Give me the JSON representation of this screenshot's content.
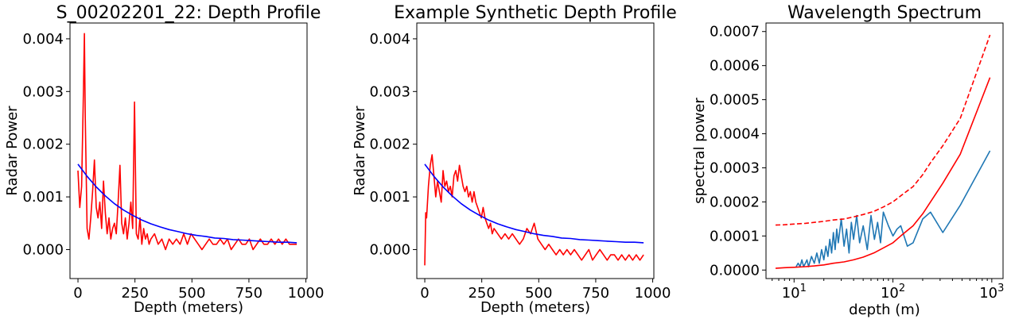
{
  "chart_data": [
    {
      "type": "line",
      "title": "S_00202201_22: Depth Profile",
      "xlabel": "Depth (meters)",
      "ylabel": "Radar Power",
      "xlim": [
        -35,
        1005
      ],
      "ylim": [
        -0.00055,
        0.0043
      ],
      "xticks": [
        0,
        250,
        500,
        750,
        1000
      ],
      "yticks": [
        0.0,
        0.001,
        0.002,
        0.003,
        0.004
      ],
      "xticklabels": [
        "0",
        "250",
        "500",
        "750",
        "1000"
      ],
      "yticklabels": [
        "0.000",
        "0.001",
        "0.002",
        "0.003",
        "0.004"
      ],
      "grid": false,
      "series": [
        {
          "color": "#ff0000",
          "x": [
            0,
            8,
            16,
            24,
            28,
            32,
            40,
            48,
            56,
            64,
            72,
            80,
            88,
            96,
            104,
            112,
            120,
            128,
            136,
            144,
            152,
            160,
            168,
            176,
            184,
            192,
            200,
            208,
            216,
            224,
            232,
            240,
            248,
            256,
            264,
            272,
            280,
            288,
            296,
            304,
            312,
            320,
            336,
            352,
            368,
            384,
            400,
            416,
            432,
            448,
            464,
            480,
            496,
            512,
            528,
            544,
            560,
            576,
            592,
            608,
            624,
            640,
            656,
            672,
            688,
            704,
            720,
            736,
            752,
            768,
            784,
            800,
            816,
            832,
            848,
            864,
            880,
            896,
            912,
            928,
            944,
            960
          ],
          "y": [
            0.0015,
            0.0008,
            0.0012,
            0.003,
            0.0041,
            0.0025,
            0.0004,
            0.0002,
            0.0006,
            0.0011,
            0.0017,
            0.0008,
            0.0006,
            0.0009,
            0.0004,
            0.0013,
            0.0007,
            0.0003,
            0.0006,
            0.0002,
            0.0004,
            0.0005,
            0.0003,
            0.0009,
            0.0016,
            0.0005,
            0.0003,
            0.0006,
            0.0002,
            0.0005,
            0.0009,
            0.0004,
            0.0028,
            0.0003,
            0.0002,
            0.0006,
            0.0001,
            0.0004,
            0.0002,
            0.0003,
            0.0001,
            0.0002,
            0.0003,
            0.0001,
            0.0002,
            0.0,
            0.0002,
            0.0001,
            0.0002,
            0.0001,
            0.0003,
            0.0001,
            0.0003,
            0.0002,
            0.0001,
            0.0,
            0.0001,
            0.0002,
            0.0001,
            0.0001,
            0.0002,
            0.0001,
            0.0002,
            0.0,
            0.0001,
            0.0002,
            0.0001,
            0.0001,
            0.0002,
            0.0,
            0.0001,
            0.0002,
            0.0001,
            0.0001,
            0.0002,
            0.0001,
            0.0002,
            0.0001,
            0.0002,
            0.0001,
            0.0001,
            0.0001
          ]
        },
        {
          "color": "#0000ff",
          "x": [
            0,
            40,
            80,
            120,
            160,
            200,
            240,
            280,
            320,
            360,
            400,
            440,
            480,
            520,
            560,
            600,
            640,
            680,
            720,
            760,
            800,
            840,
            880,
            920,
            960
          ],
          "y": [
            0.00162,
            0.00139,
            0.00119,
            0.00102,
            0.00087,
            0.00075,
            0.00065,
            0.00056,
            0.00049,
            0.00043,
            0.00038,
            0.00034,
            0.0003,
            0.00027,
            0.00025,
            0.00022,
            0.00021,
            0.00019,
            0.00018,
            0.00017,
            0.00016,
            0.00015,
            0.00014,
            0.00014,
            0.00013
          ]
        }
      ]
    },
    {
      "type": "line",
      "title": "Example Synthetic Depth Profile",
      "xlabel": "Depth (meters)",
      "ylabel": "Radar Power",
      "xlim": [
        -35,
        1005
      ],
      "ylim": [
        -0.00055,
        0.0043
      ],
      "xticks": [
        0,
        250,
        500,
        750,
        1000
      ],
      "yticks": [
        0.0,
        0.001,
        0.002,
        0.003,
        0.004
      ],
      "xticklabels": [
        "0",
        "250",
        "500",
        "750",
        "1000"
      ],
      "yticklabels": [
        "0.000",
        "0.001",
        "0.002",
        "0.003",
        "0.004"
      ],
      "grid": false,
      "series": [
        {
          "color": "#ff0000",
          "x": [
            0,
            4,
            8,
            16,
            24,
            32,
            40,
            48,
            56,
            64,
            72,
            80,
            88,
            96,
            104,
            112,
            120,
            128,
            136,
            144,
            152,
            160,
            168,
            176,
            184,
            192,
            200,
            208,
            216,
            224,
            232,
            240,
            248,
            256,
            264,
            272,
            280,
            288,
            296,
            304,
            320,
            336,
            352,
            368,
            384,
            400,
            416,
            432,
            448,
            464,
            480,
            496,
            512,
            528,
            544,
            560,
            576,
            592,
            608,
            624,
            640,
            656,
            672,
            688,
            704,
            720,
            736,
            752,
            768,
            784,
            800,
            816,
            832,
            848,
            864,
            880,
            896,
            912,
            928,
            944,
            960
          ],
          "y": [
            -0.0003,
            0.0007,
            0.0006,
            0.0012,
            0.0016,
            0.0018,
            0.0014,
            0.001,
            0.0013,
            0.0011,
            0.0009,
            0.0015,
            0.0012,
            0.0013,
            0.0011,
            0.0012,
            0.001,
            0.0014,
            0.0015,
            0.0013,
            0.0016,
            0.0014,
            0.0012,
            0.0011,
            0.0012,
            0.001,
            0.0011,
            0.0009,
            0.0011,
            0.0009,
            0.0008,
            0.0007,
            0.0006,
            0.0008,
            0.0006,
            0.0005,
            0.0004,
            0.0005,
            0.0003,
            0.0004,
            0.0003,
            0.0002,
            0.0003,
            0.0002,
            0.0003,
            0.0002,
            0.0001,
            0.0002,
            0.0004,
            0.0003,
            0.0005,
            0.0002,
            0.0001,
            0.0,
            0.0001,
            0.0,
            -0.0001,
            0.0,
            -0.0001,
            0.0,
            -0.0001,
            0.0,
            -0.0001,
            -0.0002,
            -0.0001,
            0.0,
            -0.0002,
            -0.0001,
            0.0,
            -0.0001,
            -0.0002,
            -0.0001,
            -0.0001,
            -0.0002,
            -0.0001,
            -0.0002,
            -0.0001,
            -0.0002,
            -0.0001,
            -0.0002,
            -0.0001
          ]
        },
        {
          "color": "#0000ff",
          "x": [
            0,
            40,
            80,
            120,
            160,
            200,
            240,
            280,
            320,
            360,
            400,
            440,
            480,
            520,
            560,
            600,
            640,
            680,
            720,
            760,
            800,
            840,
            880,
            920,
            960
          ],
          "y": [
            0.00162,
            0.00139,
            0.00119,
            0.00102,
            0.00087,
            0.00075,
            0.00065,
            0.00056,
            0.00049,
            0.00043,
            0.00038,
            0.00034,
            0.0003,
            0.00027,
            0.00025,
            0.00022,
            0.00021,
            0.00019,
            0.00018,
            0.00017,
            0.00016,
            0.00015,
            0.00014,
            0.00014,
            0.00013
          ]
        }
      ]
    },
    {
      "type": "line",
      "title": "Wavelength Spectrum",
      "xlabel": "depth (m)",
      "ylabel": "spectral power",
      "xscale": "log",
      "xlim": [
        5.2,
        1300
      ],
      "ylim": [
        -2.5e-05,
        0.000725
      ],
      "xticks": [
        10,
        100,
        1000
      ],
      "xticklabels": [
        [
          "10",
          "1"
        ],
        [
          "10",
          "2"
        ],
        [
          "10",
          "3"
        ]
      ],
      "yticks": [
        0.0,
        0.0001,
        0.0002,
        0.0003,
        0.0004,
        0.0005,
        0.0006,
        0.0007
      ],
      "yticklabels": [
        "0.0000",
        "0.0001",
        "0.0002",
        "0.0003",
        "0.0004",
        "0.0005",
        "0.0006",
        "0.0007"
      ],
      "grid": false,
      "series": [
        {
          "color": "#1f77b4",
          "x": [
            10.5,
            11,
            11.5,
            12,
            12.5,
            13,
            13.5,
            14,
            15,
            16,
            17,
            18,
            19,
            20,
            21,
            22,
            23,
            24,
            25,
            26,
            27,
            28,
            30,
            32,
            34,
            36,
            38,
            40,
            43,
            46,
            50,
            55,
            60,
            65,
            70,
            75,
            80,
            90,
            100,
            110,
            120,
            140,
            160,
            200,
            240,
            320,
            480,
            960
          ],
          "y": [
            1e-05,
            2e-05,
            1e-05,
            3e-05,
            1e-05,
            2e-05,
            3e-05,
            1e-05,
            4e-05,
            2e-05,
            5e-05,
            2e-05,
            6e-05,
            3e-05,
            7e-05,
            4e-05,
            9e-05,
            5e-05,
            0.00011,
            6e-05,
            0.00012,
            8e-05,
            0.00015,
            7e-05,
            0.00012,
            5e-05,
            0.00014,
            9e-05,
            0.00016,
            8e-05,
            0.00013,
            6e-05,
            0.00016,
            9e-05,
            0.00014,
            8e-05,
            0.00017,
            0.00013,
            0.0001,
            0.00012,
            0.00013,
            7e-05,
            8e-05,
            0.00015,
            0.00017,
            0.00011,
            0.00019,
            0.00035
          ]
        },
        {
          "color": "#ff0000",
          "x": [
            6.5,
            8,
            10,
            13,
            16,
            20,
            25,
            32,
            40,
            50,
            64,
            80,
            100,
            120,
            160,
            200,
            240,
            320,
            480,
            960
          ],
          "y": [
            5e-06,
            7e-06,
            8e-06,
            1e-05,
            1.2e-05,
            1.5e-05,
            2e-05,
            2.4e-05,
            3e-05,
            3.8e-05,
            5e-05,
            6.5e-05,
            8e-05,
            0.0001,
            0.00013,
            0.000165,
            0.0002,
            0.000255,
            0.00034,
            0.000565
          ]
        },
        {
          "color": "#ff0000",
          "dashed": true,
          "x": [
            6.5,
            8,
            10,
            13,
            16,
            20,
            25,
            32,
            40,
            50,
            64,
            80,
            100,
            120,
            160,
            200,
            240,
            320,
            480,
            960
          ],
          "y": [
            0.000132,
            0.000133,
            0.000135,
            0.000137,
            0.00014,
            0.000143,
            0.000147,
            0.00015,
            0.000156,
            0.000163,
            0.000172,
            0.000185,
            0.0002,
            0.000218,
            0.000245,
            0.00028,
            0.000315,
            0.000365,
            0.000445,
            0.00069
          ]
        }
      ]
    }
  ]
}
